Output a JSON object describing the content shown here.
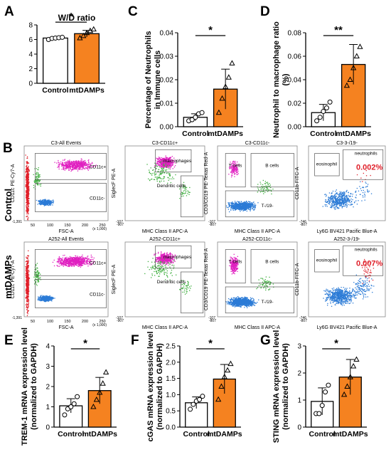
{
  "colors": {
    "control_fill": "#ffffff",
    "mtdamps_fill": "#f58220",
    "bar_stroke": "#000000",
    "flow_blue": "#2b7bd6",
    "flow_red": "#e0202a",
    "flow_magenta": "#e020c0",
    "flow_green": "#3fae3f",
    "red_text": "#e0202a"
  },
  "panel_letters": {
    "A": "A",
    "B": "B",
    "C": "C",
    "D": "D",
    "E": "E",
    "F": "F",
    "G": "G"
  },
  "row_labels": {
    "control": "Control",
    "mtdamps": "mtDAMPs"
  },
  "significance": {
    "A": "*",
    "C": "*",
    "D": "**",
    "E": "*",
    "F": "*",
    "G": "*"
  },
  "chart_data": [
    {
      "id": "A",
      "type": "bar",
      "title": "W/D ratio",
      "ylabel": "",
      "ylim": [
        0,
        8
      ],
      "yticks": [
        "0",
        "2",
        "4",
        "6",
        "8"
      ],
      "categories": [
        "Control",
        "mtDAMPs"
      ],
      "values": [
        6.2,
        6.8
      ],
      "errors": [
        0.1,
        0.45
      ],
      "points": [
        [
          6.0,
          6.15,
          6.2,
          6.25,
          6.3
        ],
        [
          6.2,
          6.5,
          6.9,
          7.2,
          7.4
        ]
      ]
    },
    {
      "id": "C",
      "type": "bar",
      "title": "",
      "ylabel": "Percentage of Neutrophils in Immune cells",
      "ylim": [
        0,
        0.04
      ],
      "yticks": [
        "0.00",
        "0.01",
        "0.02",
        "0.03",
        "0.04"
      ],
      "categories": [
        "Control",
        "mtDAMPs"
      ],
      "values": [
        0.004,
        0.016
      ],
      "errors": [
        0.0015,
        0.0085
      ],
      "points": [
        [
          0.0025,
          0.003,
          0.004,
          0.0055,
          0.006
        ],
        [
          0.006,
          0.012,
          0.017,
          0.021,
          0.027
        ]
      ]
    },
    {
      "id": "D",
      "type": "bar",
      "title": "",
      "ylabel": "Neutrophil to macrophage ratio (%)",
      "ylim": [
        0,
        0.08
      ],
      "yticks": [
        "0.00",
        "0.02",
        "0.04",
        "0.06",
        "0.08"
      ],
      "categories": [
        "Control",
        "mtDAMPs"
      ],
      "values": [
        0.012,
        0.053
      ],
      "errors": [
        0.007,
        0.017
      ],
      "points": [
        [
          0.005,
          0.008,
          0.013,
          0.016,
          0.021
        ],
        [
          0.035,
          0.04,
          0.05,
          0.06,
          0.068
        ]
      ]
    },
    {
      "id": "E",
      "type": "bar",
      "title": "",
      "ylabel": "TREM-1 mRNA expression level (normalized to GAPDH)",
      "ylim": [
        0,
        4
      ],
      "yticks": [
        "0",
        "1",
        "2",
        "3",
        "4"
      ],
      "categories": [
        "Control",
        "mtDAMPs"
      ],
      "values": [
        1.05,
        1.8
      ],
      "errors": [
        0.35,
        0.65
      ],
      "points": [
        [
          0.6,
          0.9,
          1.0,
          1.15,
          1.5
        ],
        [
          1.0,
          1.35,
          1.7,
          2.15,
          2.7
        ]
      ]
    },
    {
      "id": "F",
      "type": "bar",
      "title": "",
      "ylabel": "cGAS mRNA expression level (normalized to GAPDH)",
      "ylim": [
        0,
        2.5
      ],
      "yticks": [
        "0.0",
        "0.5",
        "1.0",
        "1.5",
        "2.0",
        "2.5"
      ],
      "categories": [
        "Control",
        "mtDAMPs"
      ],
      "values": [
        0.75,
        1.48
      ],
      "errors": [
        0.18,
        0.45
      ],
      "points": [
        [
          0.55,
          0.7,
          0.8,
          0.85,
          0.95
        ],
        [
          0.85,
          1.25,
          1.55,
          1.75,
          1.95
        ]
      ]
    },
    {
      "id": "G",
      "type": "bar",
      "title": "",
      "ylabel": "STING mRNA expression level (normalized to GAPDH)",
      "ylim": [
        0,
        3
      ],
      "yticks": [
        "0",
        "1",
        "2",
        "3"
      ],
      "categories": [
        "Control",
        "mtDAMPs"
      ],
      "values": [
        0.95,
        1.85
      ],
      "errors": [
        0.5,
        0.65
      ],
      "points": [
        [
          0.5,
          0.5,
          0.8,
          1.3,
          1.55
        ],
        [
          1.2,
          1.5,
          1.85,
          2.25,
          2.5
        ]
      ]
    }
  ],
  "flow": {
    "control": {
      "p1": {
        "title": "C3-All Events",
        "xlabel": "FSC-A",
        "ylabel": "CD11c PE-Cy7-A",
        "gate_top": "CD11c+",
        "gate_bottom": "CD11c-",
        "ymin": "-1,391",
        "xticks": [
          "50",
          "100",
          "150",
          "200",
          "250"
        ],
        "xunit": "(x 1,000)"
      },
      "p2": {
        "title": "C3-CD11c+",
        "xlabel": "MHC Class II APC-A",
        "ylabel": "SiglecF PE-A",
        "gate1": "macrophages",
        "gate2": "Dendritic cells",
        "ymin": "-107",
        "xmin": "-907"
      },
      "p3": {
        "title": "C3-CD11c-",
        "xlabel": "MHC Class II APC-A",
        "ylabel": "CD3/CD19 PE-Texas Red-A",
        "gate1": "T cells",
        "gate2": "B cells",
        "gate3": "T-/19-",
        "ymin": "-107",
        "xmin": "-807"
      },
      "p4": {
        "title": "C3-3-/19-",
        "xlabel": "Ly6G BV421 Pacific Blue-A",
        "ylabel": "CD11b FITC-A",
        "gate1": "eosinophil",
        "gate2": "neutrophils",
        "percent": "0.002%",
        "ymin": "-746",
        "xmin": "-807"
      }
    },
    "mtdamps": {
      "p1": {
        "title": "A252-All Events",
        "xlabel": "FSC-A",
        "ylabel": "CD11c PE-Cy7-A",
        "gate_top": "CD11c+",
        "gate_bottom": "CD11c-",
        "ymin": "-1,391",
        "xticks": [
          "50",
          "100",
          "150",
          "200",
          "250"
        ],
        "xunit": "(x 1,000)"
      },
      "p2": {
        "title": "A252-CD11c+",
        "xlabel": "MHC Class II APC-A",
        "ylabel": "SiglecF PE-A",
        "gate1": "macrophages",
        "gate2": "Dendritic cells",
        "ymin": "-107",
        "xmin": "-907"
      },
      "p3": {
        "title": "A252-CD11c-",
        "xlabel": "MHC Class II APC-A",
        "ylabel": "CD3/CD19 PE-Texas Red-A",
        "gate1": "T cells",
        "gate2": "B cells",
        "gate3": "T-/19-",
        "ymin": "-107",
        "xmin": "-807"
      },
      "p4": {
        "title": "A252-3-/19-",
        "xlabel": "Ly6G BV421 Pacific Blue-A",
        "ylabel": "CD11b FITC-A",
        "gate1": "eosinophil",
        "gate2": "neutrophils",
        "percent": "0.007%",
        "ymin": "-746",
        "xmin": "-807"
      }
    }
  }
}
